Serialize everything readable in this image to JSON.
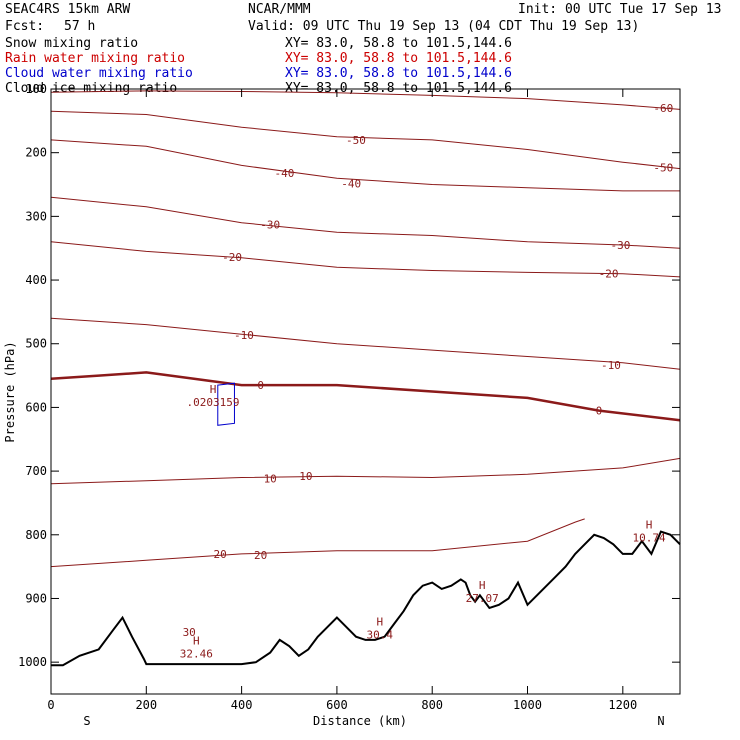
{
  "header": {
    "model": "SEAC4RS 15km ARW",
    "center": "NCAR/MMM",
    "init": "Init: 00 UTC Tue 17 Sep 13",
    "fcst_label": "Fcst:",
    "fcst_value": "57 h",
    "valid": "Valid: 09 UTC Thu 19 Sep 13 (04 CDT Thu 19 Sep 13)",
    "fields": [
      {
        "name": "Snow mixing ratio",
        "xy": "XY=  83.0, 58.8 to 101.5,144.6",
        "color": "#000000"
      },
      {
        "name": "Rain water mixing ratio",
        "xy": "XY=  83.0, 58.8 to 101.5,144.6",
        "color": "#cc0000"
      },
      {
        "name": "Cloud water mixing ratio",
        "xy": "XY=  83.0, 58.8 to 101.5,144.6",
        "color": "#0000cc"
      },
      {
        "name": "Cloud ice mixing ratio",
        "xy": "XY=  83.0, 58.8 to 101.5,144.6",
        "color": "#000000"
      }
    ]
  },
  "colors": {
    "temperature": "#8b1a1a",
    "cloud_water": "#0000cc",
    "terrain": "#000000"
  },
  "chart_data": {
    "type": "line",
    "xlabel": "Distance (km)",
    "ylabel": "Pressure (hPa)",
    "xlim": [
      0,
      1320
    ],
    "ylim": [
      100,
      1050
    ],
    "y_inverted": true,
    "x_ticks": [
      0,
      200,
      400,
      600,
      800,
      1000,
      1200
    ],
    "y_ticks": [
      100,
      200,
      300,
      400,
      500,
      600,
      700,
      800,
      900,
      1000
    ],
    "x_end_labels": {
      "left": "S",
      "right": "N"
    },
    "contour_labels": [
      {
        "text": "-60",
        "x": 1285,
        "p": 130
      },
      {
        "text": "-50",
        "x": 640,
        "p": 180
      },
      {
        "text": "-50",
        "x": 1285,
        "p": 223
      },
      {
        "text": "-40",
        "x": 490,
        "p": 232
      },
      {
        "text": "-40",
        "x": 630,
        "p": 248
      },
      {
        "text": "-30",
        "x": 460,
        "p": 313
      },
      {
        "text": "-30",
        "x": 1195,
        "p": 345
      },
      {
        "text": "-20",
        "x": 380,
        "p": 364
      },
      {
        "text": "-20",
        "x": 1170,
        "p": 390
      },
      {
        "text": "-10",
        "x": 405,
        "p": 486
      },
      {
        "text": "-10",
        "x": 1175,
        "p": 533
      },
      {
        "text": "0",
        "x": 440,
        "p": 565
      },
      {
        "text": "0",
        "x": 1150,
        "p": 605
      },
      {
        "text": "10",
        "x": 460,
        "p": 712
      },
      {
        "text": "10",
        "x": 535,
        "p": 708
      },
      {
        "text": "20",
        "x": 355,
        "p": 830
      },
      {
        "text": "20",
        "x": 440,
        "p": 832
      },
      {
        "text": "30",
        "x": 290,
        "p": 953
      }
    ],
    "highs": [
      {
        "label": "H",
        "value": "32.46",
        "x": 305,
        "p": 985
      },
      {
        "label": "H",
        "value": "30.4",
        "x": 690,
        "p": 955
      },
      {
        "label": "H",
        "value": "27.07",
        "x": 905,
        "p": 898
      },
      {
        "label": "H",
        "value": "10.74",
        "x": 1255,
        "p": 803
      },
      {
        "label": "H",
        "value": ".0203159",
        "x": 340,
        "p": 590
      }
    ],
    "terrain": {
      "x": [
        0,
        25,
        60,
        100,
        130,
        150,
        170,
        195,
        200,
        300,
        400,
        430,
        460,
        480,
        500,
        520,
        540,
        560,
        580,
        600,
        620,
        640,
        660,
        680,
        700,
        720,
        740,
        760,
        780,
        800,
        820,
        840,
        860,
        870,
        880,
        890,
        900,
        920,
        940,
        960,
        980,
        1000,
        1020,
        1040,
        1060,
        1080,
        1100,
        1120,
        1140,
        1160,
        1180,
        1200,
        1220,
        1240,
        1260,
        1280,
        1300,
        1320
      ],
      "p": [
        1005,
        1005,
        990,
        980,
        950,
        930,
        960,
        995,
        1003,
        1003,
        1003,
        1000,
        985,
        965,
        975,
        990,
        980,
        960,
        945,
        930,
        945,
        960,
        965,
        965,
        960,
        940,
        920,
        895,
        880,
        875,
        885,
        880,
        870,
        875,
        895,
        905,
        895,
        915,
        910,
        900,
        875,
        910,
        895,
        880,
        865,
        850,
        830,
        815,
        800,
        805,
        815,
        830,
        830,
        810,
        830,
        795,
        800,
        815
      ]
    },
    "temperature_isotherms": [
      {
        "level": -60,
        "x": [
          0,
          200,
          400,
          600,
          800,
          1000,
          1200,
          1320
        ],
        "p": [
          105,
          103,
          104,
          106,
          110,
          115,
          125,
          132
        ]
      },
      {
        "level": -50,
        "x": [
          0,
          200,
          400,
          600,
          800,
          1000,
          1200,
          1320
        ],
        "p": [
          135,
          140,
          160,
          175,
          180,
          195,
          215,
          225
        ]
      },
      {
        "level": -40,
        "x": [
          0,
          200,
          400,
          600,
          800,
          1000,
          1200,
          1320
        ],
        "p": [
          180,
          190,
          220,
          240,
          250,
          255,
          260,
          260
        ]
      },
      {
        "level": -30,
        "x": [
          0,
          200,
          400,
          600,
          800,
          1000,
          1200,
          1320
        ],
        "p": [
          270,
          285,
          310,
          325,
          330,
          340,
          345,
          350
        ]
      },
      {
        "level": -20,
        "x": [
          0,
          200,
          400,
          600,
          800,
          1000,
          1200,
          1320
        ],
        "p": [
          340,
          355,
          365,
          380,
          385,
          388,
          390,
          395
        ]
      },
      {
        "level": -10,
        "x": [
          0,
          200,
          400,
          600,
          800,
          1000,
          1200,
          1320
        ],
        "p": [
          460,
          470,
          485,
          500,
          510,
          520,
          530,
          540
        ]
      },
      {
        "level": 0,
        "x": [
          0,
          100,
          200,
          300,
          400,
          600,
          800,
          1000,
          1150,
          1320
        ],
        "p": [
          555,
          550,
          545,
          555,
          565,
          565,
          575,
          585,
          605,
          620
        ]
      },
      {
        "level": 10,
        "x": [
          0,
          200,
          400,
          600,
          800,
          1000,
          1200,
          1320
        ],
        "p": [
          720,
          715,
          710,
          708,
          710,
          705,
          695,
          680
        ]
      },
      {
        "level": 20,
        "x": [
          0,
          200,
          400,
          600,
          800,
          1000,
          1100,
          1120
        ],
        "p": [
          850,
          840,
          830,
          825,
          825,
          810,
          780,
          775
        ]
      }
    ]
  }
}
